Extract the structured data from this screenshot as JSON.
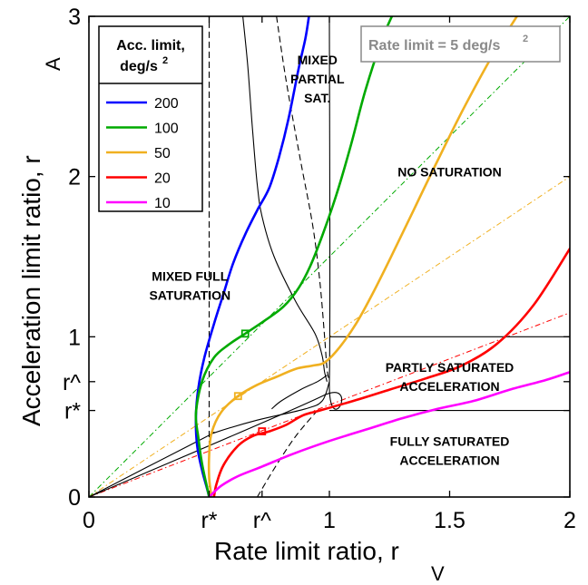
{
  "chart_data": {
    "type": "line",
    "title": "",
    "xlabel": "Rate limit ratio, r",
    "xlabel_sub": "V",
    "ylabel": "Acceleration limit ratio, r",
    "ylabel_sub": "A",
    "xlim": [
      0,
      2
    ],
    "ylim": [
      0,
      3
    ],
    "x_ticks": [
      {
        "value": 0,
        "label": "0"
      },
      {
        "value": 0.5,
        "label": "r*"
      },
      {
        "value": 0.72,
        "label": "r^"
      },
      {
        "value": 1,
        "label": "1"
      },
      {
        "value": 1.5,
        "label": "1.5"
      },
      {
        "value": 2,
        "label": "2"
      }
    ],
    "y_ticks": [
      {
        "value": 0,
        "label": "0"
      },
      {
        "value": 0.54,
        "label": "r*"
      },
      {
        "value": 0.72,
        "label": "r^"
      },
      {
        "value": 1,
        "label": "1"
      },
      {
        "value": 2,
        "label": "2"
      },
      {
        "value": 3,
        "label": "3"
      }
    ],
    "grid": false,
    "legend": {
      "title_line1": "Acc. limit,",
      "title_line2": "deg/s",
      "title_sup": "2",
      "placement": "top-left"
    },
    "annotation": {
      "text": "Rate limit = 5 deg/s",
      "sup": "2",
      "placement": "top-right"
    },
    "regions": [
      {
        "lines": [
          "MIXED",
          "PARTIAL",
          "SAT."
        ],
        "x": 0.95,
        "y": 2.7
      },
      {
        "lines": [
          "NO SATURATION"
        ],
        "x": 1.5,
        "y": 2.0
      },
      {
        "lines": [
          "MIXED FULL",
          "SATURATION"
        ],
        "x": 0.42,
        "y": 1.35
      },
      {
        "lines": [
          "PARTLY SATURATED",
          "ACCELERATION"
        ],
        "x": 1.5,
        "y": 0.78
      },
      {
        "lines": [
          "FULLY SATURATED",
          "ACCELERATION"
        ],
        "x": 1.5,
        "y": 0.32
      }
    ],
    "series": [
      {
        "name": "200",
        "color": "#0000ff",
        "points": [
          [
            0.5,
            0
          ],
          [
            0.49,
            0.06
          ],
          [
            0.47,
            0.17
          ],
          [
            0.45,
            0.32
          ],
          [
            0.445,
            0.5
          ],
          [
            0.455,
            0.68
          ],
          [
            0.48,
            0.87
          ],
          [
            0.52,
            1.08
          ],
          [
            0.56,
            1.27
          ],
          [
            0.6,
            1.46
          ],
          [
            0.65,
            1.64
          ],
          [
            0.7,
            1.79
          ],
          [
            0.75,
            1.93
          ],
          [
            0.79,
            2.12
          ],
          [
            0.83,
            2.36
          ],
          [
            0.87,
            2.66
          ],
          [
            0.9,
            2.86
          ],
          [
            0.915,
            3
          ]
        ]
      },
      {
        "name": "100",
        "color": "#00aa00",
        "marker": [
          0.65,
          1.02
        ],
        "points": [
          [
            0.5,
            0
          ],
          [
            0.49,
            0.07
          ],
          [
            0.47,
            0.21
          ],
          [
            0.455,
            0.37
          ],
          [
            0.445,
            0.52
          ],
          [
            0.47,
            0.72
          ],
          [
            0.52,
            0.87
          ],
          [
            0.58,
            0.95
          ],
          [
            0.65,
            1.02
          ],
          [
            0.73,
            1.1
          ],
          [
            0.81,
            1.19
          ],
          [
            0.87,
            1.3
          ],
          [
            0.92,
            1.44
          ],
          [
            0.97,
            1.63
          ],
          [
            1.03,
            1.89
          ],
          [
            1.09,
            2.2
          ],
          [
            1.15,
            2.54
          ],
          [
            1.22,
            2.86
          ],
          [
            1.26,
            3
          ]
        ]
      },
      {
        "name": "50",
        "color": "#f0b020",
        "marker": [
          0.62,
          0.63
        ],
        "points": [
          [
            0.51,
            0
          ],
          [
            0.5,
            0.12
          ],
          [
            0.5,
            0.26
          ],
          [
            0.51,
            0.4
          ],
          [
            0.55,
            0.53
          ],
          [
            0.62,
            0.63
          ],
          [
            0.7,
            0.7
          ],
          [
            0.78,
            0.75
          ],
          [
            0.86,
            0.8
          ],
          [
            0.93,
            0.82
          ],
          [
            0.98,
            0.84
          ],
          [
            1.04,
            0.93
          ],
          [
            1.11,
            1.08
          ],
          [
            1.18,
            1.27
          ],
          [
            1.26,
            1.51
          ],
          [
            1.35,
            1.79
          ],
          [
            1.45,
            2.1
          ],
          [
            1.56,
            2.43
          ],
          [
            1.68,
            2.76
          ],
          [
            1.78,
            3
          ]
        ]
      },
      {
        "name": "20",
        "color": "#ff0000",
        "marker": [
          0.72,
          0.41
        ],
        "points": [
          [
            0.52,
            0
          ],
          [
            0.53,
            0.08
          ],
          [
            0.56,
            0.2
          ],
          [
            0.62,
            0.32
          ],
          [
            0.68,
            0.38
          ],
          [
            0.75,
            0.41
          ],
          [
            0.82,
            0.45
          ],
          [
            0.89,
            0.51
          ],
          [
            0.96,
            0.54
          ],
          [
            1.1,
            0.6
          ],
          [
            1.25,
            0.67
          ],
          [
            1.4,
            0.74
          ],
          [
            1.55,
            0.82
          ],
          [
            1.7,
            0.96
          ],
          [
            1.85,
            1.2
          ],
          [
            2.0,
            1.55
          ]
        ]
      },
      {
        "name": "10",
        "color": "#ff00ff",
        "points": [
          [
            0.5,
            0
          ],
          [
            0.55,
            0.07
          ],
          [
            0.62,
            0.13
          ],
          [
            0.72,
            0.19
          ],
          [
            0.85,
            0.27
          ],
          [
            1.0,
            0.35
          ],
          [
            1.15,
            0.42
          ],
          [
            1.3,
            0.49
          ],
          [
            1.45,
            0.55
          ],
          [
            1.6,
            0.6
          ],
          [
            1.75,
            0.67
          ],
          [
            1.9,
            0.73
          ],
          [
            2.0,
            0.78
          ]
        ]
      }
    ],
    "boundaries": [
      {
        "style": "solid",
        "points": [
          [
            0.64,
            3
          ],
          [
            0.66,
            2.7
          ],
          [
            0.68,
            2.3
          ],
          [
            0.7,
            1.95
          ],
          [
            0.72,
            1.75
          ],
          [
            0.77,
            1.5
          ],
          [
            0.86,
            1.22
          ],
          [
            0.94,
            1.02
          ],
          [
            0.97,
            0.88
          ],
          [
            0.98,
            0.78
          ],
          [
            0.99,
            0.72
          ]
        ]
      },
      {
        "style": "solid",
        "points": [
          [
            0,
            0
          ],
          [
            0.97,
            0.63
          ],
          [
            1.0,
            0.72
          ],
          [
            1.0,
            3
          ]
        ]
      },
      {
        "style": "solid",
        "points": [
          [
            0,
            0
          ],
          [
            0.48,
            0.37
          ],
          [
            0.52,
            0.4
          ],
          [
            0.7,
            0.48
          ],
          [
            0.9,
            0.55
          ],
          [
            0.97,
            0.6
          ],
          [
            1.0,
            0.72
          ]
        ]
      },
      {
        "style": "solid",
        "points": [
          [
            0.76,
            0.55
          ],
          [
            0.8,
            0.6
          ],
          [
            0.88,
            0.67
          ],
          [
            0.95,
            0.72
          ],
          [
            0.99,
            0.76
          ]
        ]
      },
      {
        "style": "solid",
        "points": [
          [
            1.0,
            1.0
          ],
          [
            2.0,
            1.0
          ]
        ]
      },
      {
        "style": "solid",
        "points": [
          [
            1.0,
            0.54
          ],
          [
            2.0,
            0.54
          ]
        ]
      },
      {
        "style": "dashed",
        "points": [
          [
            0.5,
            0
          ],
          [
            0.5,
            3
          ]
        ]
      },
      {
        "style": "dashed",
        "points": [
          [
            0.78,
            3
          ],
          [
            0.82,
            2.6
          ],
          [
            0.88,
            2.1
          ],
          [
            0.93,
            1.7
          ],
          [
            0.96,
            1.35
          ],
          [
            0.98,
            1.0
          ],
          [
            0.99,
            0.8
          ],
          [
            1.0,
            0.72
          ]
        ]
      },
      {
        "style": "dashed",
        "points": [
          [
            0.7,
            0
          ],
          [
            0.78,
            0.2
          ],
          [
            0.86,
            0.38
          ],
          [
            0.95,
            0.54
          ]
        ]
      }
    ],
    "reference_lines": [
      {
        "color": "#00aa00",
        "points": [
          [
            0,
            0
          ],
          [
            2,
            3
          ]
        ]
      },
      {
        "color": "#f0b020",
        "points": [
          [
            0,
            0
          ],
          [
            2,
            2
          ]
        ]
      },
      {
        "color": "#ff0000",
        "points": [
          [
            0,
            0
          ],
          [
            2,
            1.15
          ]
        ]
      }
    ]
  }
}
